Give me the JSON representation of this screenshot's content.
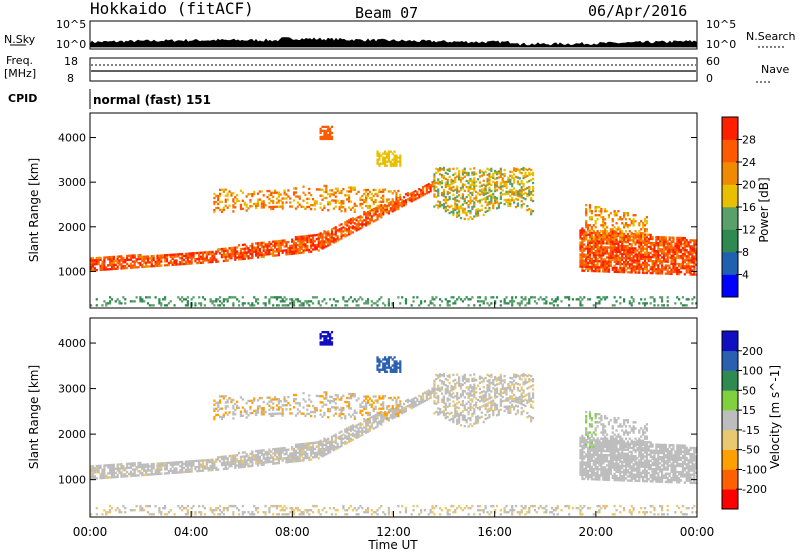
{
  "header": {
    "station": "Hokkaido (fitACF)",
    "beam": "Beam 07",
    "date": "06/Apr/2016"
  },
  "params": {
    "nsky_label": "N.Sky",
    "nsearch_label": "N.Search",
    "freq_label_1": "Freq.",
    "freq_label_2": "[MHz]",
    "nave_label": "Nave",
    "cpid_label": "CPID",
    "cpid_value": "normal (fast) 151",
    "noise_ticks": [
      "10^5",
      "10^0"
    ],
    "freq_ticks_left": [
      "18",
      "8"
    ],
    "nave_ticks_right": [
      "60",
      "0"
    ]
  },
  "colors": {
    "power": [
      "#0000ff",
      "#2060b0",
      "#2e8a50",
      "#5aa06a",
      "#e8c000",
      "#f08a00",
      "#ff5a00",
      "#ff2000"
    ],
    "velocity": [
      "#ff0000",
      "#ff6000",
      "#ffa000",
      "#e8c870",
      "#bdbdbd",
      "#80d040",
      "#2e8a50",
      "#2a60b0",
      "#1010c0"
    ]
  },
  "chart_data": [
    {
      "type": "heatmap",
      "quantity": "Power",
      "ylabel": "Slant Range [km]",
      "ylim": [
        180,
        4550
      ],
      "y_ticks": [
        "1000",
        "2000",
        "3000",
        "4000"
      ],
      "colorbar_label": "Power [dB]",
      "colorbar_ticks": [
        "4",
        "8",
        "12",
        "16",
        "20",
        "24",
        "28"
      ],
      "colorbar_range": [
        0,
        32
      ],
      "features": [
        {
          "from_h": 0.0,
          "to_h": 4.0,
          "range_km": [
            1000,
            1250
          ],
          "value": 26
        },
        {
          "from_h": 4.0,
          "to_h": 9.0,
          "range_km": [
            1300,
            1550
          ],
          "value": 24
        },
        {
          "from_h": 9.0,
          "to_h": 13.5,
          "range_km": [
            1600,
            3000
          ],
          "value": 22
        },
        {
          "from_h": 5.0,
          "to_h": 12.0,
          "range_km": [
            2400,
            2800
          ],
          "value": 20
        },
        {
          "from_h": 14.0,
          "to_h": 16.0,
          "range_km": [
            2600,
            3200
          ],
          "value": 16
        },
        {
          "from_h": 19.5,
          "to_h": 24.0,
          "range_km": [
            1000,
            2000
          ],
          "value": 26
        }
      ]
    },
    {
      "type": "heatmap",
      "quantity": "Velocity",
      "ylabel": "Slant Range [km]",
      "ylim": [
        180,
        4550
      ],
      "y_ticks": [
        "1000",
        "2000",
        "3000",
        "4000"
      ],
      "colorbar_label": "Velocity [m s^-1]",
      "colorbar_ticks": [
        "200",
        "100",
        "50",
        "15",
        "-15",
        "-50",
        "-100",
        "-200"
      ],
      "colorbar_range": [
        -250,
        250
      ],
      "x_ticks": [
        "00:00",
        "04:00",
        "08:00",
        "12:00",
        "16:00",
        "20:00",
        "00:00"
      ],
      "xlabel": "Time UT",
      "xlim_hours": [
        0,
        24
      ]
    }
  ]
}
